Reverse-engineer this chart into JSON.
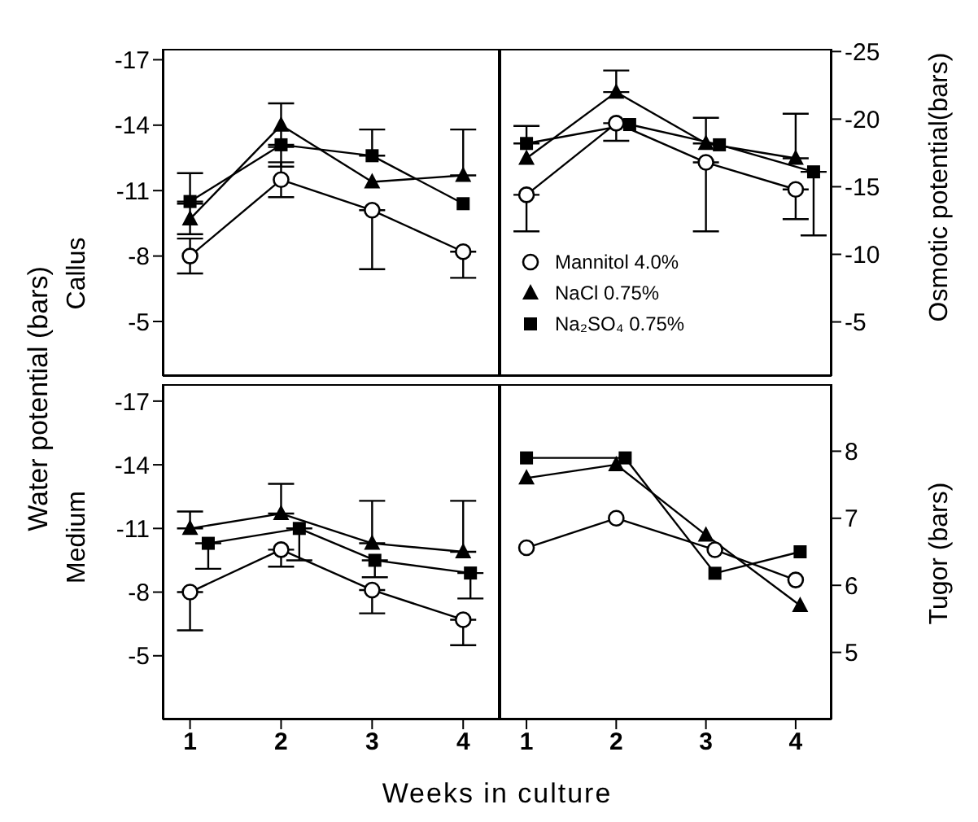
{
  "chart_data": [
    {
      "type": "line",
      "title": "Callus",
      "ylabel": "Water potential (bars)",
      "x": [
        1,
        2,
        3,
        4
      ],
      "xlim": [
        0.7,
        4.4
      ],
      "xticks": [
        1,
        2,
        3,
        4
      ],
      "ylim": [
        -2.5,
        -17.5
      ],
      "yticks": [
        -17,
        -14,
        -11,
        -8,
        -5
      ],
      "tick_labels": "y",
      "series": [
        {
          "color": "#000000",
          "marker": "circle",
          "values": [
            -8.0,
            -11.5,
            -10.1,
            -8.2
          ],
          "errors": [
            0.8,
            0.8,
            [
              -10.1,
              -7.4
            ],
            [
              -8.2,
              -7.0
            ]
          ]
        },
        {
          "color": "#000000",
          "marker": "triangle",
          "values": [
            -9.7,
            -14.0,
            -11.4,
            -11.7
          ],
          "errors": [
            0.7,
            1.0,
            null,
            [
              -13.8,
              -11.7
            ]
          ]
        },
        {
          "color": "#000000",
          "marker": "square",
          "values": [
            -10.5,
            -13.1,
            -12.6,
            -10.4
          ],
          "errors": [
            [
              -11.8,
              -10.5
            ],
            [
              -13.1,
              -12.1
            ],
            [
              -13.8,
              -12.6
            ],
            null
          ]
        }
      ]
    },
    {
      "type": "line",
      "y2label": "Osmotic potential(bars)",
      "x": [
        1,
        2,
        3,
        4
      ],
      "xlim": [
        0.7,
        4.4
      ],
      "xticks": [
        1,
        2,
        3,
        4
      ],
      "y2lim": [
        -1,
        -25.2
      ],
      "y2ticks": [
        -25,
        -20,
        -15,
        -10,
        -5
      ],
      "tick_labels": "y",
      "legend": "bottom left",
      "series": [
        {
          "name": "Mannitol 4.0%",
          "color": "#000000",
          "marker": "circle",
          "axis": "y2",
          "values": [
            -14.4,
            -19.7,
            -16.8,
            -14.8
          ],
          "errors": [
            [
              -14.4,
              -11.7
            ],
            [
              -19.7,
              -18.4
            ],
            [
              -16.8,
              -11.7
            ],
            [
              -14.8,
              -12.6
            ]
          ]
        },
        {
          "name": "NaCl 0.75%",
          "color": "#000000",
          "marker": "triangle",
          "axis": "y2",
          "values": [
            -17.1,
            -22.0,
            -18.2,
            -17.1
          ],
          "errors": [
            null,
            [
              -23.6,
              -22.0
            ],
            [
              -20.1,
              -18.2
            ],
            [
              -20.4,
              -17.1
            ]
          ]
        },
        {
          "name": "Na₂SO₄ 0.75%",
          "color": "#000000",
          "marker": "square",
          "axis": "y2",
          "x": [
            1,
            2.15,
            3.15,
            4.2
          ],
          "values": [
            -18.2,
            -19.6,
            -18.1,
            -16.1
          ],
          "errors": [
            [
              -19.5,
              -18.2
            ],
            null,
            null,
            [
              -16.1,
              -11.4
            ]
          ]
        }
      ]
    },
    {
      "type": "line",
      "title": "Medium",
      "xlabel": "Weeks in culture",
      "x": [
        1,
        2,
        3,
        4
      ],
      "xlim": [
        0.7,
        4.4
      ],
      "xticks": [
        1,
        2,
        3,
        4
      ],
      "ylim": [
        -2,
        -17.8
      ],
      "yticks": [
        -17,
        -14,
        -11,
        -8,
        -5
      ],
      "series": [
        {
          "color": "#000000",
          "marker": "circle",
          "values": [
            -8.0,
            -10.0,
            -8.1,
            -6.7
          ],
          "errors": [
            [
              -8.0,
              -6.2
            ],
            [
              -10.0,
              -9.2
            ],
            [
              -8.1,
              -7.0
            ],
            [
              -6.7,
              -5.5
            ]
          ]
        },
        {
          "color": "#000000",
          "marker": "triangle",
          "values": [
            -11.0,
            -11.7,
            -10.3,
            -9.9
          ],
          "errors": [
            [
              -11.8,
              -11.0
            ],
            [
              -13.1,
              -11.7
            ],
            [
              -12.3,
              -10.3
            ],
            [
              -12.3,
              -9.9
            ]
          ]
        },
        {
          "color": "#000000",
          "marker": "square",
          "x": [
            1.2,
            2.2,
            3.03,
            4.08
          ],
          "values": [
            -10.3,
            -11.0,
            -9.5,
            -8.9
          ],
          "errors": [
            [
              -10.3,
              -9.1
            ],
            [
              -11.0,
              -9.5
            ],
            [
              -9.5,
              -8.7
            ],
            [
              -8.9,
              -7.7
            ]
          ]
        }
      ]
    },
    {
      "type": "line",
      "y2label": "Tugor (bars)",
      "x": [
        1,
        2,
        3,
        4.05
      ],
      "xlim": [
        0.7,
        4.4
      ],
      "xticks": [
        1,
        2,
        3,
        4
      ],
      "y2lim": [
        4,
        9
      ],
      "y2ticks": [
        5,
        6,
        7,
        8
      ],
      "series": [
        {
          "color": "#000000",
          "marker": "circle",
          "axis": "y2",
          "x": [
            1,
            2,
            3.1,
            4
          ],
          "values": [
            6.56,
            7.0,
            6.53,
            6.08
          ]
        },
        {
          "color": "#000000",
          "marker": "triangle",
          "axis": "y2",
          "values": [
            7.6,
            7.8,
            6.75,
            5.7
          ]
        },
        {
          "color": "#000000",
          "marker": "square",
          "axis": "y2",
          "x": [
            1,
            2.1,
            3.1,
            4.05
          ],
          "values": [
            7.9,
            7.9,
            6.18,
            6.5
          ]
        }
      ]
    }
  ]
}
